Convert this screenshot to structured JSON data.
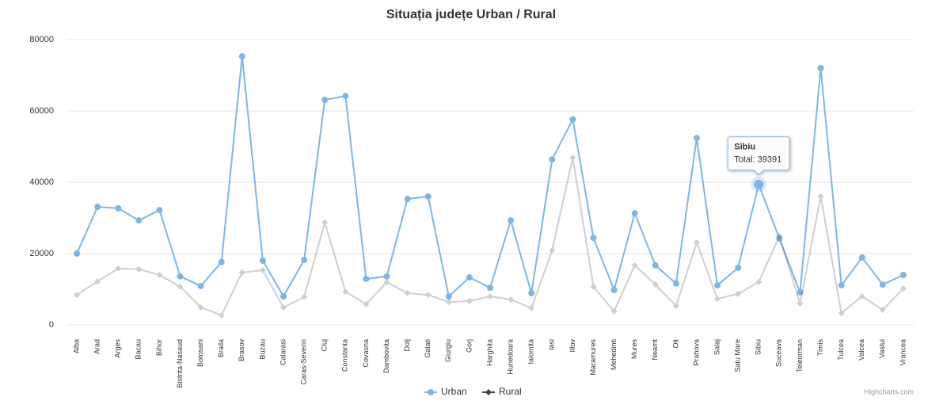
{
  "chart_data": {
    "type": "line",
    "title": "Situația județe Urban / Rural",
    "categories": [
      "Alba",
      "Arad",
      "Arges",
      "Bacau",
      "Bihor",
      "Bistrita-Nasaud",
      "Botosani",
      "Braila",
      "Brasov",
      "Buzau",
      "Calarasi",
      "Caras-Severin",
      "Cluj",
      "Constanta",
      "Covasna",
      "Dambovita",
      "Dolj",
      "Galati",
      "Giurgiu",
      "Gorj",
      "Harghita",
      "Hunedoara",
      "Ialomita",
      "Iasi",
      "Ilfov",
      "Maramures",
      "Mehedinti",
      "Mures",
      "Neamt",
      "Olt",
      "Prahova",
      "Salaj",
      "Satu Mare",
      "Sibiu",
      "Suceava",
      "Teleorman",
      "Timis",
      "Tulcea",
      "Valcea",
      "Vaslui",
      "Vrancea"
    ],
    "series": [
      {
        "name": "Urban",
        "color": "#7cb5ec",
        "marker": "circle",
        "values": [
          20000,
          33100,
          32700,
          29300,
          32200,
          13600,
          10900,
          17600,
          75300,
          18000,
          8000,
          18200,
          63100,
          64200,
          12900,
          13600,
          35300,
          36000,
          8000,
          13300,
          10400,
          29300,
          8900,
          46400,
          57600,
          24400,
          9800,
          31300,
          16700,
          11600,
          52400,
          11100,
          16000,
          39391,
          24200,
          9100,
          72000,
          11100,
          18900,
          11300,
          14000
        ]
      },
      {
        "name": "Rural",
        "color": "#434348",
        "marker": "diamond",
        "values": [
          8400,
          12200,
          15800,
          15600,
          14000,
          10700,
          4900,
          2700,
          14700,
          15300,
          4900,
          7800,
          28700,
          9300,
          5800,
          12000,
          8900,
          8400,
          6400,
          6700,
          8000,
          7100,
          4700,
          20900,
          46900,
          10700,
          3800,
          16700,
          11300,
          5300,
          23100,
          7300,
          8700,
          12000,
          24900,
          6000,
          36000,
          3300,
          8000,
          4200,
          10200
        ]
      }
    ],
    "ylim": [
      0,
      80000
    ],
    "yticks": [
      0,
      20000,
      40000,
      60000,
      80000
    ],
    "grid": true,
    "legend": "bottom",
    "tooltip": {
      "title": "Sibiu",
      "label": "Total: 39391"
    },
    "credits": "Highcharts.com"
  }
}
